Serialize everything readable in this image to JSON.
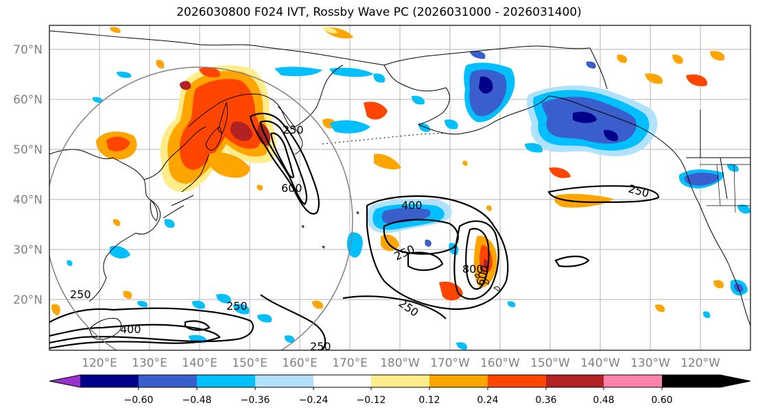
{
  "title": "2026030800 F024 IVT, Rossby Wave PC (2026031000 - 2026031400)",
  "lat_labels": [
    "70°N",
    "60°N",
    "50°N",
    "40°N",
    "30°N",
    "20°N"
  ],
  "lon_labels": [
    "120°E",
    "130°E",
    "140°E",
    "150°E",
    "160°E",
    "170°E",
    "180°W",
    "170°W",
    "160°W",
    "150°W",
    "140°W",
    "130°W",
    "120°W"
  ],
  "colorbar": {
    "ticks": [
      "−0.60",
      "−0.48",
      "−0.36",
      "−0.24",
      "−0.12",
      "0.12",
      "0.24",
      "0.36",
      "0.48",
      "0.60"
    ],
    "colors": [
      "#9932cc",
      "#00008b",
      "#3a5fcd",
      "#00bfff",
      "#b0e2ff",
      "#ffffff",
      "#ffec8b",
      "#ffa500",
      "#ff4500",
      "#b22222",
      "#ff82ab"
    ]
  },
  "ivt_contour_labels": [
    "250",
    "600",
    "400",
    "250",
    "800",
    "600",
    "250",
    "250",
    "250",
    "400",
    "250",
    "250"
  ]
}
